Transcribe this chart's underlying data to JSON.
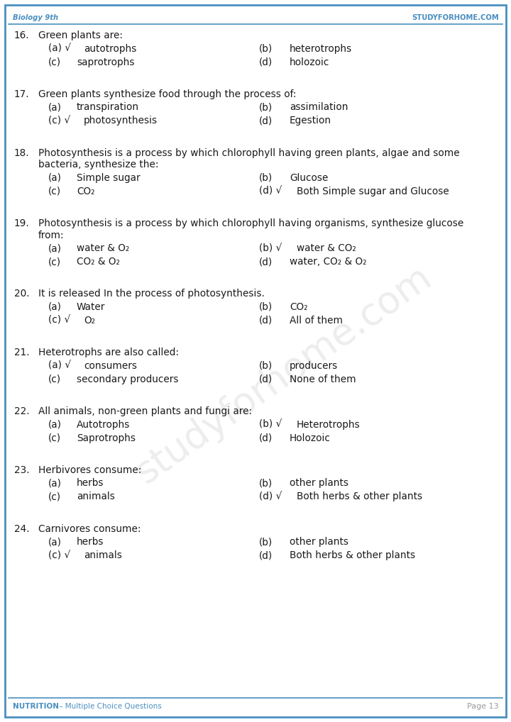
{
  "header_left": "Biology 9th",
  "header_right": "studyforhome.com",
  "footer_left": "NUTRITION – Multiple Choice Questions",
  "footer_right": "Page 13",
  "header_color": "#4a8fc0",
  "border_color": "#4a8fc0",
  "text_color": "#1a1a1a",
  "bg_color": "#ffffff",
  "watermark": "studyforhome.com",
  "questions": [
    {
      "num": "16.",
      "lines": [
        "Green plants are:"
      ],
      "options": [
        {
          "label": "(a)",
          "tick": true,
          "text": "autotrophs",
          "col": 0
        },
        {
          "label": "(b)",
          "tick": false,
          "text": "heterotrophs",
          "col": 1
        },
        {
          "label": "(c)",
          "tick": false,
          "text": "saprotrophs",
          "col": 0
        },
        {
          "label": "(d)",
          "tick": false,
          "text": "holozoic",
          "col": 1
        }
      ]
    },
    {
      "num": "17.",
      "lines": [
        "Green plants synthesize food through the process of:"
      ],
      "options": [
        {
          "label": "(a)",
          "tick": false,
          "text": "transpiration",
          "col": 0
        },
        {
          "label": "(b)",
          "tick": false,
          "text": "assimilation",
          "col": 1
        },
        {
          "label": "(c)",
          "tick": true,
          "text": "photosynthesis",
          "col": 0
        },
        {
          "label": "(d)",
          "tick": false,
          "text": "Egestion",
          "col": 1
        }
      ]
    },
    {
      "num": "18.",
      "lines": [
        "Photosynthesis is a process by which chlorophyll having green plants, algae and some",
        "bacteria, synthesize the:"
      ],
      "options": [
        {
          "label": "(a)",
          "tick": false,
          "text": "Simple sugar",
          "col": 0
        },
        {
          "label": "(b)",
          "tick": false,
          "text": "Glucose",
          "col": 1
        },
        {
          "label": "(c)",
          "tick": false,
          "text": "CO₂",
          "col": 0
        },
        {
          "label": "(d)",
          "tick": true,
          "text": "Both Simple sugar and Glucose",
          "col": 1
        }
      ]
    },
    {
      "num": "19.",
      "lines": [
        "Photosynthesis is a process by which chlorophyll having organisms, synthesize glucose",
        "from:"
      ],
      "options": [
        {
          "label": "(a)",
          "tick": false,
          "text": "water & O₂",
          "col": 0
        },
        {
          "label": "(b)",
          "tick": true,
          "text": "water & CO₂",
          "col": 1
        },
        {
          "label": "(c)",
          "tick": false,
          "text": "CO₂ & O₂",
          "col": 0
        },
        {
          "label": "(d)",
          "tick": false,
          "text": "water, CO₂ & O₂",
          "col": 1
        }
      ]
    },
    {
      "num": "20.",
      "lines": [
        "It is released In the process of photosynthesis."
      ],
      "options": [
        {
          "label": "(a)",
          "tick": false,
          "text": "Water",
          "col": 0
        },
        {
          "label": "(b)",
          "tick": false,
          "text": "CO₂",
          "col": 1
        },
        {
          "label": "(c)",
          "tick": true,
          "text": "O₂",
          "col": 0
        },
        {
          "label": "(d)",
          "tick": false,
          "text": "All of them",
          "col": 1
        }
      ]
    },
    {
      "num": "21.",
      "lines": [
        "Heterotrophs are also called:"
      ],
      "options": [
        {
          "label": "(a)",
          "tick": true,
          "text": "consumers",
          "col": 0
        },
        {
          "label": "(b)",
          "tick": false,
          "text": "producers",
          "col": 1
        },
        {
          "label": "(c)",
          "tick": false,
          "text": "secondary producers",
          "col": 0
        },
        {
          "label": "(d)",
          "tick": false,
          "text": "None of them",
          "col": 1
        }
      ]
    },
    {
      "num": "22.",
      "lines": [
        "All animals, non-green plants and fungi are:"
      ],
      "options": [
        {
          "label": "(a)",
          "tick": false,
          "text": "Autotrophs",
          "col": 0
        },
        {
          "label": "(b)",
          "tick": true,
          "text": "Heterotrophs",
          "col": 1
        },
        {
          "label": "(c)",
          "tick": false,
          "text": "Saprotrophs",
          "col": 0
        },
        {
          "label": "(d)",
          "tick": false,
          "text": "Holozoic",
          "col": 1
        }
      ]
    },
    {
      "num": "23.",
      "lines": [
        "Herbivores consume:"
      ],
      "options": [
        {
          "label": "(a)",
          "tick": false,
          "text": "herbs",
          "col": 0
        },
        {
          "label": "(b)",
          "tick": false,
          "text": "other plants",
          "col": 1
        },
        {
          "label": "(c)",
          "tick": false,
          "text": "animals",
          "col": 0
        },
        {
          "label": "(d)",
          "tick": true,
          "text": "Both herbs & other plants",
          "col": 1
        }
      ]
    },
    {
      "num": "24.",
      "lines": [
        "Carnivores consume:"
      ],
      "options": [
        {
          "label": "(a)",
          "tick": false,
          "text": "herbs",
          "col": 0
        },
        {
          "label": "(b)",
          "tick": false,
          "text": "other plants",
          "col": 1
        },
        {
          "label": "(c)",
          "tick": true,
          "text": "animals",
          "col": 0
        },
        {
          "label": "(d)",
          "tick": false,
          "text": "Both herbs & other plants",
          "col": 1
        }
      ]
    }
  ]
}
